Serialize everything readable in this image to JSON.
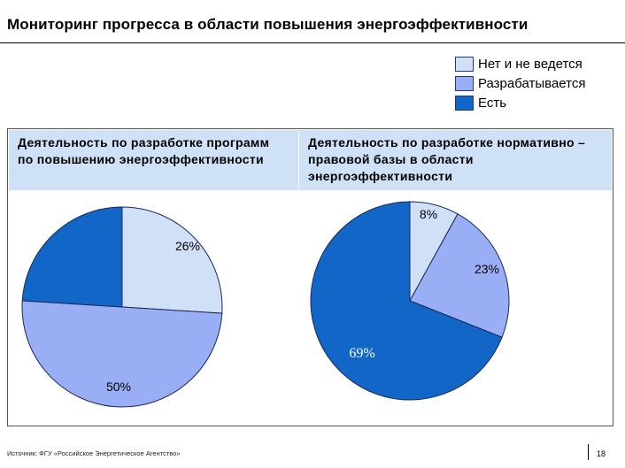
{
  "title": "Мониторинг прогресса в области повышения энергоэффективности",
  "legend": [
    {
      "label": "Нет и не ведется",
      "color": "#cfe0f7"
    },
    {
      "label": "Разрабатывается",
      "color": "#99aef5"
    },
    {
      "label": "Есть",
      "color": "#1166c8"
    }
  ],
  "panel": {
    "left_heading": "Деятельность по разработке программ по повышению энергоэффективности",
    "right_heading": "Деятельность по разработке нормативно – правовой базы в области энергоэффективности"
  },
  "chart_data": [
    {
      "type": "pie",
      "title": "Деятельность по разработке программ по повышению энергоэффективности",
      "categories": [
        "Нет и не ведется",
        "Разрабатывается",
        "Есть"
      ],
      "values": [
        26,
        50,
        24
      ],
      "labels": [
        "26%",
        "50%",
        ""
      ],
      "colors": [
        "#cfe0f7",
        "#99aef5",
        "#1166c8"
      ]
    },
    {
      "type": "pie",
      "title": "Деятельность по разработке нормативно – правовой базы в области энергоэффективности",
      "categories": [
        "Нет и не ведется",
        "Разрабатывается",
        "Есть"
      ],
      "values": [
        8,
        23,
        69
      ],
      "labels": [
        "8%",
        "23%",
        "69%"
      ],
      "colors": [
        "#cfe0f7",
        "#99aef5",
        "#1166c8"
      ]
    }
  ],
  "footer": {
    "source": "Источник: ФГУ «Российское Энергетическое Агентство»",
    "page": "18"
  }
}
